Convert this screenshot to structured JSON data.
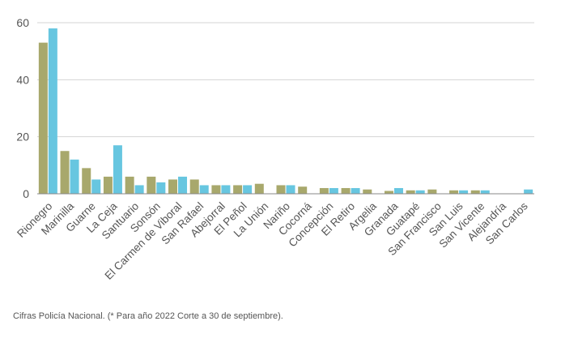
{
  "chart_data": {
    "type": "bar",
    "categories": [
      "Rionegro",
      "Marinilla",
      "Guarne",
      "La Ceja",
      "Santuario",
      "Sonsón",
      "El Carmen de Viboral",
      "San Rafael",
      "Abejorral",
      "El Peñol",
      "La Unión",
      "Nariño",
      "Cocorná",
      "Concepción",
      "El Retiro",
      "Argelia",
      "Granada",
      "Guatapé",
      "San Francisco",
      "San Luis",
      "San Vicente",
      "Alejandría",
      "San Carlos"
    ],
    "series": [
      {
        "values": [
          53,
          15,
          9,
          6,
          6,
          6,
          5,
          5,
          3,
          3,
          3.5,
          3,
          2.5,
          2,
          2,
          1.5,
          1,
          1.2,
          1.5,
          1.2,
          1.2,
          0,
          0
        ],
        "color": "#a8a86c"
      },
      {
        "values": [
          58,
          12,
          5,
          17,
          3,
          4,
          6,
          3,
          3,
          3,
          0,
          3,
          0,
          2,
          2,
          0,
          2,
          1.2,
          0,
          1.2,
          1.2,
          0,
          1.5
        ],
        "color": "#67c6e0"
      }
    ],
    "ylim": [
      0,
      60
    ],
    "yticks": [
      0,
      20,
      40,
      60
    ],
    "grid": true,
    "title": "",
    "xlabel": "",
    "ylabel": ""
  },
  "caption": "Cifras Policía Nacional. (* Para año 2022 Corte a 30 de septiembre)."
}
